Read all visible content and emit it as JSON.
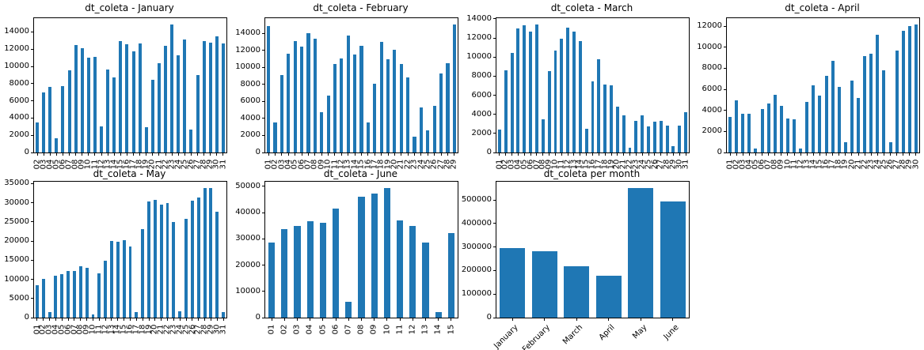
{
  "bar_color": "#1f77b4",
  "axis_color": "#000000",
  "background_color": "#ffffff",
  "chart_data": [
    {
      "type": "bar",
      "title": "dt_coleta - January",
      "xlabel": "",
      "ylabel": "",
      "categories": [
        "02",
        "03",
        "04",
        "05",
        "06",
        "07",
        "08",
        "09",
        "10",
        "11",
        "12",
        "13",
        "14",
        "15",
        "16",
        "17",
        "18",
        "19",
        "20",
        "21",
        "22",
        "23",
        "24",
        "25",
        "26",
        "27",
        "28",
        "29",
        "30",
        "31"
      ],
      "values": [
        3500,
        7000,
        7600,
        1650,
        7750,
        9550,
        12450,
        12100,
        11050,
        11100,
        3050,
        9650,
        8750,
        12900,
        12550,
        11750,
        12700,
        2900,
        8450,
        10400,
        12350,
        14850,
        11300,
        13150,
        2700,
        9000,
        12900,
        12800,
        13500,
        12700
      ],
      "ylim": [
        0,
        15600
      ],
      "yticks": [
        0,
        2000,
        4000,
        6000,
        8000,
        10000,
        12000,
        14000
      ],
      "xtick_rotation": 90,
      "bar_ratio": 0.5,
      "grid": false,
      "legend": null
    },
    {
      "type": "bar",
      "title": "dt_coleta - February",
      "xlabel": "",
      "ylabel": "",
      "categories": [
        "01",
        "02",
        "03",
        "04",
        "05",
        "06",
        "07",
        "08",
        "09",
        "10",
        "11",
        "12",
        "13",
        "14",
        "15",
        "16",
        "17",
        "18",
        "19",
        "20",
        "21",
        "22",
        "23",
        "24",
        "25",
        "26",
        "27",
        "28",
        "29"
      ],
      "values": [
        14900,
        3550,
        9100,
        11650,
        13100,
        12500,
        14050,
        13400,
        4750,
        6650,
        10400,
        11100,
        13750,
        11550,
        12550,
        3550,
        8100,
        13050,
        10950,
        12100,
        10450,
        8850,
        1850,
        5300,
        2600,
        5450,
        9300,
        10550,
        15050
      ],
      "ylim": [
        0,
        15800
      ],
      "yticks": [
        0,
        2000,
        4000,
        6000,
        8000,
        10000,
        12000,
        14000
      ],
      "xtick_rotation": 90,
      "bar_ratio": 0.5,
      "grid": false,
      "legend": null
    },
    {
      "type": "bar",
      "title": "dt_coleta - March",
      "xlabel": "",
      "ylabel": "",
      "categories": [
        "01",
        "02",
        "03",
        "04",
        "05",
        "06",
        "07",
        "08",
        "09",
        "10",
        "11",
        "12",
        "13",
        "14",
        "15",
        "16",
        "17",
        "18",
        "19",
        "20",
        "21",
        "22",
        "23",
        "24",
        "25",
        "26",
        "27",
        "28",
        "29",
        "30",
        "31"
      ],
      "values": [
        2400,
        8600,
        10450,
        13000,
        13350,
        12650,
        13400,
        3500,
        8500,
        10650,
        11950,
        13100,
        12650,
        11700,
        2450,
        7450,
        9800,
        7150,
        7050,
        4800,
        3850,
        500,
        3350,
        3850,
        2700,
        3250,
        3350,
        2850,
        650,
        2850,
        4250
      ],
      "ylim": [
        0,
        14070
      ],
      "yticks": [
        0,
        2000,
        4000,
        6000,
        8000,
        10000,
        12000,
        14000
      ],
      "xtick_rotation": 90,
      "bar_ratio": 0.5,
      "grid": false,
      "legend": null
    },
    {
      "type": "bar",
      "title": "dt_coleta - April",
      "xlabel": "",
      "ylabel": "",
      "categories": [
        "01",
        "02",
        "03",
        "04",
        "05",
        "06",
        "07",
        "08",
        "09",
        "10",
        "11",
        "12",
        "13",
        "14",
        "15",
        "16",
        "17",
        "18",
        "19",
        "20",
        "21",
        "22",
        "23",
        "24",
        "25",
        "26",
        "27",
        "28",
        "29",
        "30"
      ],
      "values": [
        3400,
        4950,
        3700,
        3650,
        400,
        4150,
        4650,
        5450,
        4450,
        3200,
        3150,
        350,
        4800,
        6350,
        5400,
        7300,
        8700,
        6200,
        1000,
        6800,
        5200,
        9150,
        9400,
        11150,
        7800,
        950,
        9700,
        11550,
        12000,
        12150
      ],
      "ylim": [
        0,
        12760
      ],
      "yticks": [
        0,
        2000,
        4000,
        6000,
        8000,
        10000,
        12000
      ],
      "xtick_rotation": 90,
      "bar_ratio": 0.5,
      "grid": false,
      "legend": null
    },
    {
      "type": "bar",
      "title": "dt_coleta - May",
      "xlabel": "",
      "ylabel": "",
      "categories": [
        "01",
        "02",
        "03",
        "04",
        "05",
        "06",
        "07",
        "08",
        "09",
        "10",
        "11",
        "12",
        "13",
        "14",
        "15",
        "16",
        "17",
        "18",
        "19",
        "20",
        "21",
        "22",
        "23",
        "24",
        "25",
        "26",
        "27",
        "28",
        "29",
        "30",
        "31"
      ],
      "values": [
        8400,
        10100,
        1400,
        10900,
        11300,
        12100,
        12100,
        13500,
        13100,
        800,
        11500,
        14900,
        20100,
        19900,
        20300,
        18600,
        1400,
        23200,
        30300,
        30700,
        29500,
        29900,
        24900,
        1600,
        25900,
        30500,
        31300,
        33800,
        33800,
        27700,
        1400
      ],
      "ylim": [
        0,
        35500
      ],
      "yticks": [
        0,
        5000,
        10000,
        15000,
        20000,
        25000,
        30000,
        35000
      ],
      "xtick_rotation": 90,
      "bar_ratio": 0.5,
      "grid": false,
      "legend": null
    },
    {
      "type": "bar",
      "title": "dt_coleta - June",
      "xlabel": "",
      "ylabel": "",
      "categories": [
        "01",
        "02",
        "03",
        "04",
        "05",
        "06",
        "07",
        "08",
        "09",
        "10",
        "11",
        "12",
        "13",
        "14",
        "15"
      ],
      "values": [
        28700,
        33700,
        34900,
        36800,
        36200,
        41500,
        5900,
        46000,
        47200,
        49300,
        37100,
        35000,
        28600,
        2000,
        32300
      ],
      "ylim": [
        0,
        51800
      ],
      "yticks": [
        0,
        10000,
        20000,
        30000,
        40000,
        50000
      ],
      "xtick_rotation": 90,
      "bar_ratio": 0.5,
      "grid": false,
      "legend": null
    },
    {
      "type": "bar",
      "title": "dt_coleta per month",
      "xlabel": "",
      "ylabel": "",
      "categories": [
        "January",
        "February",
        "March",
        "April",
        "May",
        "June"
      ],
      "values": [
        295000,
        281000,
        217000,
        177000,
        550000,
        494000
      ],
      "ylim": [
        0,
        577500
      ],
      "yticks": [
        0,
        100000,
        200000,
        300000,
        400000,
        500000
      ],
      "xtick_rotation": 45,
      "bar_ratio": 0.8,
      "grid": false,
      "legend": null
    }
  ]
}
